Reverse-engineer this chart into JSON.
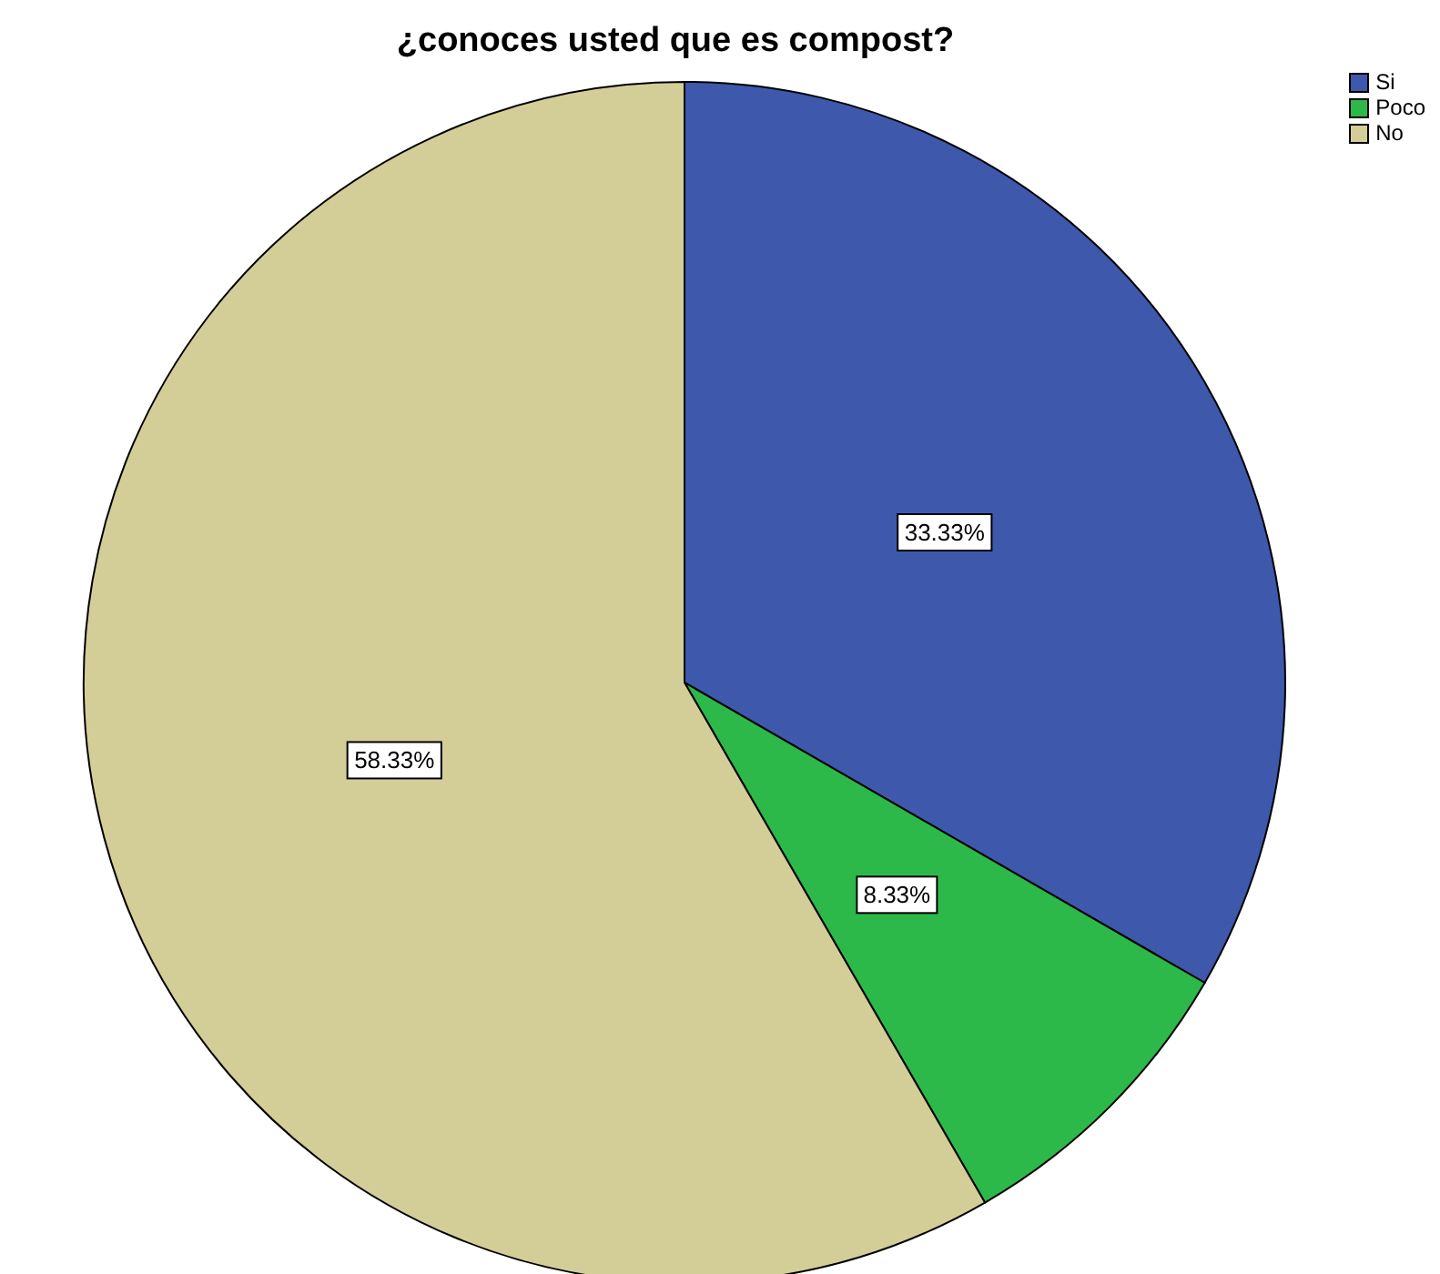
{
  "chart_data": {
    "type": "pie",
    "title": "¿conoces usted que es compost?",
    "categories": [
      "Si",
      "Poco",
      "No"
    ],
    "values": [
      33.33,
      8.33,
      58.33
    ],
    "colors": [
      "#3e58ac",
      "#2db84a",
      "#d3ce98"
    ],
    "value_labels": [
      "33.33%",
      "8.33%",
      "58.33%"
    ],
    "legend": "top right"
  }
}
